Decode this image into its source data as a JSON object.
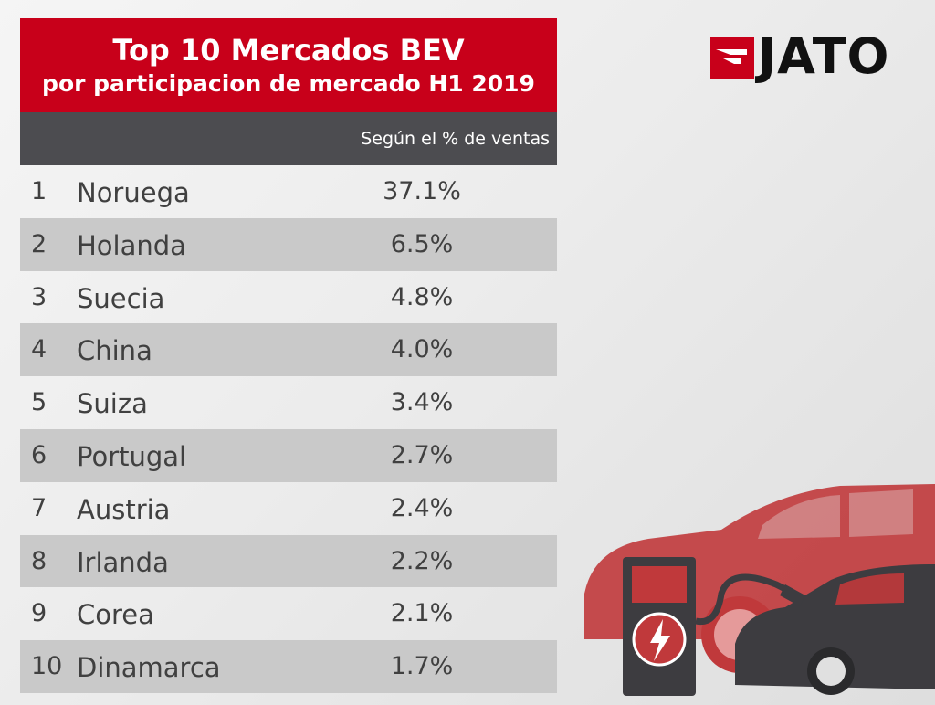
{
  "title_line1": "Top 10 Mercados BEV",
  "title_line2": "por participacion de mercado H1 2019",
  "column_label": "Según el % de ventas",
  "logo_text": "JATO",
  "colors": {
    "brand_red": "#c8001a",
    "header_gray": "#4c4c50",
    "row_alt": "#c9c9c9",
    "text": "#404040"
  },
  "rows": [
    {
      "rank": "1",
      "country": "Noruega",
      "value": "37.1%"
    },
    {
      "rank": "2",
      "country": "Holanda",
      "value": "6.5%"
    },
    {
      "rank": "3",
      "country": "Suecia",
      "value": "4.8%"
    },
    {
      "rank": "4",
      "country": "China",
      "value": "4.0%"
    },
    {
      "rank": "5",
      "country": "Suiza",
      "value": "3.4%"
    },
    {
      "rank": "6",
      "country": "Portugal",
      "value": "2.7%"
    },
    {
      "rank": "7",
      "country": "Austria",
      "value": "2.4%"
    },
    {
      "rank": "8",
      "country": "Irlanda",
      "value": "2.2%"
    },
    {
      "rank": "9",
      "country": "Corea",
      "value": "2.1%"
    },
    {
      "rank": "10",
      "country": "Dinamarca",
      "value": "1.7%"
    }
  ],
  "chart_data": {
    "type": "table",
    "title": "Top 10 Mercados BEV",
    "subtitle": "por participacion de mercado H1 2019",
    "columns": [
      "",
      "",
      "Según el % de ventas"
    ],
    "categories": [
      "Noruega",
      "Holanda",
      "Suecia",
      "China",
      "Suiza",
      "Portugal",
      "Austria",
      "Irlanda",
      "Corea",
      "Dinamarca"
    ],
    "values": [
      37.1,
      6.5,
      4.8,
      4.0,
      3.4,
      2.7,
      2.4,
      2.2,
      2.1,
      1.7
    ]
  }
}
